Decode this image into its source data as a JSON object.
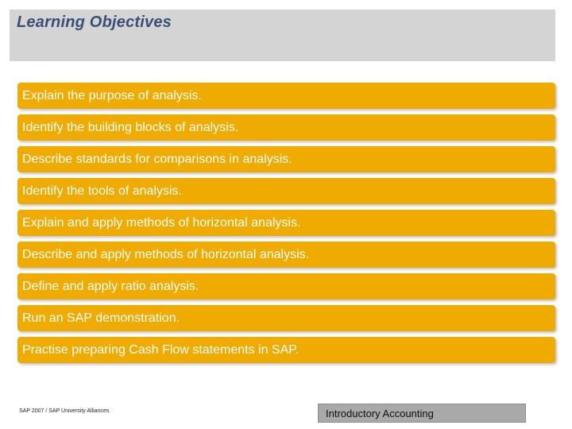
{
  "header": {
    "title": "Learning Objectives"
  },
  "objectives": [
    "Explain the purpose of analysis.",
    "Identify the building blocks of analysis.",
    "Describe standards for comparisons in analysis.",
    "Identify the tools of analysis.",
    "Explain and apply methods of horizontal analysis.",
    "Describe and apply methods of horizontal analysis.",
    "Define and apply ratio analysis.",
    "Run an SAP demonstration.",
    "Practise preparing Cash Flow statements in SAP."
  ],
  "footer": {
    "copyright": "SAP 2007 / SAP University Alliances",
    "course": "Introductory Accounting"
  },
  "colors": {
    "accent": "#f0ab00",
    "header_band": "#d4d4d4",
    "title_text": "#3a4f78",
    "footer_box": "#a9a9a9"
  }
}
